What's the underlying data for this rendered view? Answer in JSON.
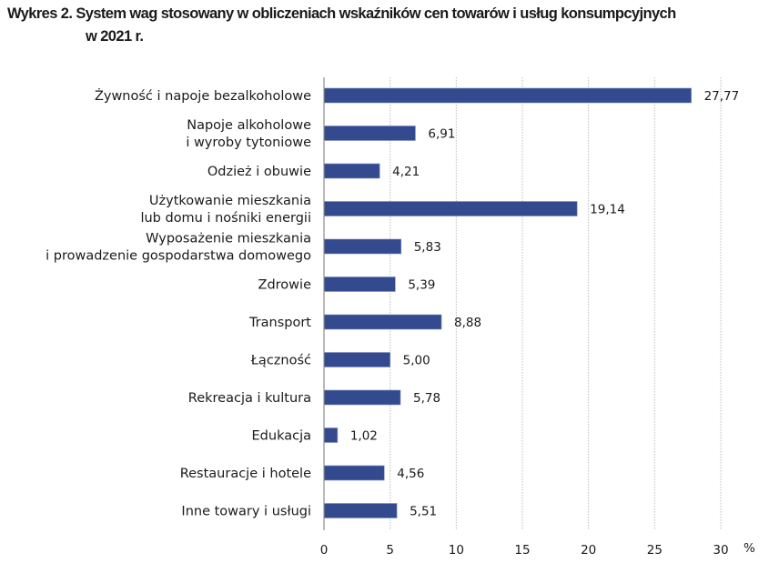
{
  "chart_data": {
    "type": "bar",
    "orientation": "horizontal",
    "title_prefix": "Wykres 2.",
    "title_line1": "System wag stosowany w obliczeniach wskaźników cen towarów i usług konsumpcyjnych",
    "title_line2": "w 2021 r.",
    "xlabel": "%",
    "ylabel": "",
    "xlim": [
      0,
      30
    ],
    "xticks": [
      0,
      5,
      10,
      15,
      20,
      25,
      30
    ],
    "xtick_labels": [
      "0",
      "5",
      "10",
      "15",
      "20",
      "25",
      "30"
    ],
    "grid": "vertical-dotted",
    "bar_color": "#344a8e",
    "categories": [
      [
        "Żywność i napoje bezalkoholowe"
      ],
      [
        "Napoje alkoholowe",
        "i wyroby tytoniowe"
      ],
      [
        "Odzież i obuwie"
      ],
      [
        "Użytkowanie mieszkania",
        "lub domu i nośniki energii"
      ],
      [
        "Wyposażenie mieszkania",
        "i prowadzenie gospodarstwa domowego"
      ],
      [
        "Zdrowie"
      ],
      [
        "Transport"
      ],
      [
        "Łączność"
      ],
      [
        "Rekreacja i kultura"
      ],
      [
        "Edukacja"
      ],
      [
        "Restauracje i hotele"
      ],
      [
        "Inne towary i usługi"
      ]
    ],
    "values": [
      27.77,
      6.91,
      4.21,
      19.14,
      5.83,
      5.39,
      8.88,
      5.0,
      5.78,
      1.02,
      4.56,
      5.51
    ],
    "value_labels": [
      "27,77",
      "6,91",
      "4,21",
      "19,14",
      "5,83",
      "5,39",
      "8,88",
      "5,00",
      "5,78",
      "1,02",
      "4,56",
      "5,51"
    ]
  }
}
